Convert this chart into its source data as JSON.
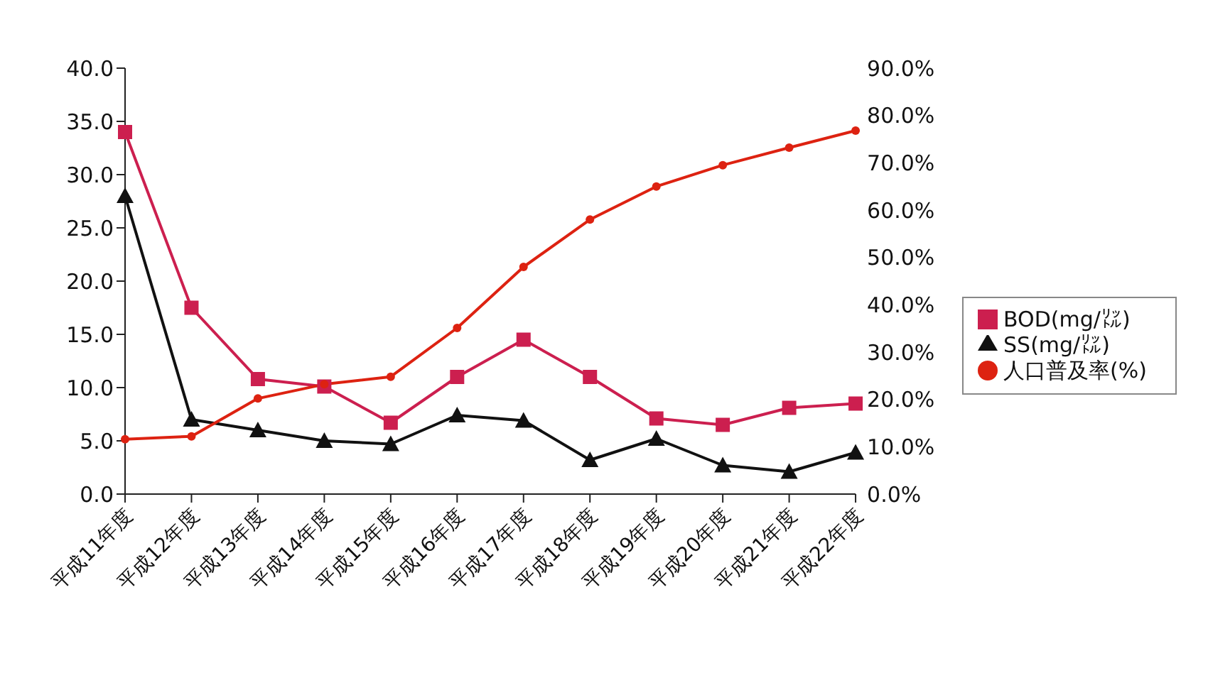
{
  "chart_data": {
    "type": "line",
    "categories": [
      "平成11年度",
      "平成12年度",
      "平成13年度",
      "平成14年度",
      "平成15年度",
      "平成16年度",
      "平成17年度",
      "平成18年度",
      "平成19年度",
      "平成20年度",
      "平成21年度",
      "平成22年度"
    ],
    "series": [
      {
        "name": "BOD(mg/㍑)",
        "color": "#cc1f4f",
        "marker": "square",
        "values": [
          34.0,
          17.5,
          10.8,
          10.1,
          6.7,
          11.0,
          14.5,
          11.0,
          7.1,
          6.5,
          8.1,
          8.5
        ]
      },
      {
        "name": "SS(mg/㍑)",
        "color": "#111111",
        "marker": "triangle",
        "values": [
          28.0,
          7.0,
          6.0,
          5.0,
          4.7,
          7.4,
          6.9,
          3.2,
          5.2,
          2.7,
          2.1,
          3.9
        ]
      },
      {
        "name": "人口普及率(%)",
        "color": "#dd2211",
        "marker": "circle",
        "axis": "y2",
        "values": [
          11.6,
          12.2,
          20.2,
          23.2,
          24.8,
          35.1,
          48.0,
          58.0,
          65.0,
          69.5,
          73.2,
          76.8
        ]
      }
    ],
    "ylim": [
      0,
      40
    ],
    "yticks": [
      {
        "value": 0,
        "label": "0.0"
      },
      {
        "value": 5,
        "label": "5.0"
      },
      {
        "value": 10,
        "label": "10.0"
      },
      {
        "value": 15,
        "label": "15.0"
      },
      {
        "value": 20,
        "label": "20.0"
      },
      {
        "value": 25,
        "label": "25.0"
      },
      {
        "value": 30,
        "label": "30.0"
      },
      {
        "value": 35,
        "label": "35.0"
      },
      {
        "value": 40,
        "label": "40.0"
      }
    ],
    "y2lim": [
      0,
      90
    ],
    "y2ticks": [
      {
        "value": 0,
        "label": "0.0%"
      },
      {
        "value": 10,
        "label": "10.0%"
      },
      {
        "value": 20,
        "label": "20.0%"
      },
      {
        "value": 30,
        "label": "30.0%"
      },
      {
        "value": 40,
        "label": "40.0%"
      },
      {
        "value": 50,
        "label": "50.0%"
      },
      {
        "value": 60,
        "label": "60.0%"
      },
      {
        "value": 70,
        "label": "70.0%"
      },
      {
        "value": 80,
        "label": "80.0%"
      },
      {
        "value": 90,
        "label": "90.0%"
      }
    ],
    "grid": false,
    "legend": "right",
    "line_style": "solid"
  }
}
